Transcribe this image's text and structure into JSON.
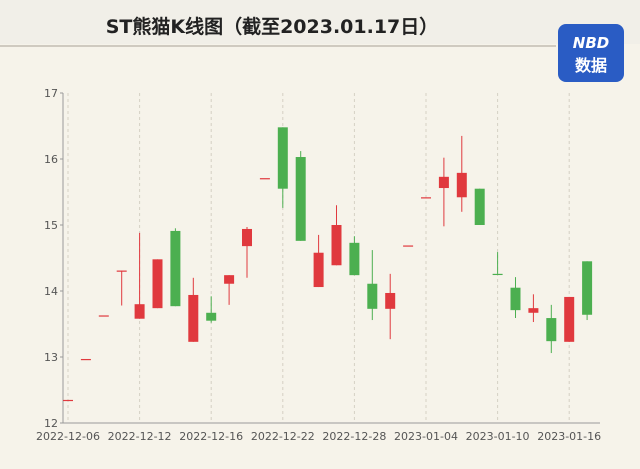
{
  "chart_data": {
    "type": "candlestick",
    "title": "ST熊猫K线图（截至2023.01.17日）",
    "logo": {
      "top": "NBD",
      "bottom": "数据"
    },
    "categories": [
      "2022-12-06",
      null,
      null,
      null,
      "2022-12-12",
      null,
      null,
      null,
      "2022-12-16",
      null,
      null,
      null,
      "2022-12-22",
      null,
      null,
      null,
      "2022-12-28",
      null,
      null,
      null,
      "2023-01-04",
      null,
      null,
      null,
      "2023-01-10",
      null,
      null,
      null,
      "2023-01-16",
      null
    ],
    "open": [
      12.35,
      12.97,
      13.63,
      14.31,
      13.58,
      13.74,
      14.91,
      13.23,
      13.67,
      14.11,
      14.68,
      15.71,
      16.48,
      16.03,
      14.06,
      14.39,
      14.73,
      14.11,
      13.73,
      14.69,
      15.42,
      15.56,
      15.42,
      15.55,
      14.26,
      14.05,
      13.67,
      13.59,
      13.23,
      14.45
    ],
    "close": [
      12.35,
      12.97,
      13.63,
      14.31,
      13.8,
      14.48,
      13.77,
      13.94,
      13.55,
      14.24,
      14.94,
      15.71,
      15.55,
      14.76,
      14.58,
      15.0,
      14.24,
      13.73,
      13.97,
      14.69,
      15.42,
      15.73,
      15.79,
      15.0,
      14.26,
      13.71,
      13.74,
      13.24,
      13.91,
      13.64
    ],
    "high": [
      12.35,
      12.97,
      13.63,
      14.31,
      14.88,
      14.48,
      14.95,
      14.2,
      13.92,
      14.24,
      14.97,
      15.71,
      16.48,
      16.12,
      14.85,
      15.3,
      14.83,
      14.62,
      14.26,
      14.69,
      15.42,
      16.02,
      16.35,
      15.55,
      14.59,
      14.21,
      13.95,
      13.79,
      13.91,
      14.45
    ],
    "low": [
      12.35,
      12.97,
      13.63,
      13.78,
      13.58,
      13.74,
      13.77,
      13.23,
      13.52,
      13.79,
      14.2,
      15.71,
      15.26,
      14.76,
      14.06,
      14.39,
      14.24,
      13.56,
      13.27,
      14.69,
      15.42,
      14.98,
      15.2,
      15.0,
      14.26,
      13.59,
      13.53,
      13.06,
      13.23,
      13.56
    ],
    "up_color": "#e0393e",
    "down_color": "#4caf50",
    "ylim": [
      12,
      17
    ],
    "yticks": [
      12,
      13,
      14,
      15,
      16,
      17
    ],
    "grid": true
  }
}
